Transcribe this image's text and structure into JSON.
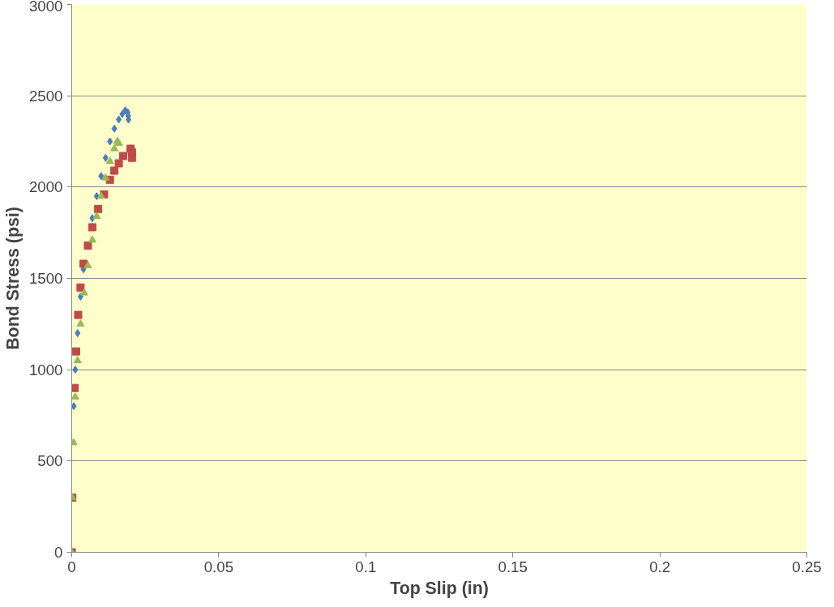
{
  "chart_data": {
    "type": "scatter",
    "xlabel": "Top Slip (in)",
    "ylabel": "Bond Stress (psi)",
    "xlim": [
      0,
      0.25
    ],
    "xticks": [
      0,
      0.05,
      0.1,
      0.15,
      0.2,
      0.25
    ],
    "ylim": [
      0,
      3000
    ],
    "yticks": [
      0,
      500,
      1000,
      1500,
      2000,
      2500,
      3000
    ],
    "grid": "y",
    "series": [
      {
        "color": "#4a7ebb",
        "marker": "diamond",
        "x": [
          0.0007,
          0.0012,
          0.002,
          0.003,
          0.004,
          0.007,
          0.0085,
          0.01,
          0.0115,
          0.013,
          0.0145,
          0.016,
          0.0172,
          0.0182,
          0.019,
          0.0192,
          0.0193
        ],
        "values": [
          800,
          1000,
          1200,
          1400,
          1550,
          1830,
          1950,
          2060,
          2160,
          2250,
          2320,
          2370,
          2400,
          2420,
          2410,
          2390,
          2370
        ]
      },
      {
        "color": "#be4b48",
        "marker": "square",
        "x": [
          0,
          0.0002,
          0.001,
          0.0015,
          0.0022,
          0.003,
          0.004,
          0.0055,
          0.007,
          0.009,
          0.011,
          0.013,
          0.0145,
          0.016,
          0.0175,
          0.02,
          0.0205,
          0.0205
        ],
        "values": [
          0,
          300,
          900,
          1100,
          1300,
          1450,
          1580,
          1680,
          1780,
          1880,
          1960,
          2040,
          2090,
          2130,
          2170,
          2210,
          2190,
          2160
        ]
      },
      {
        "color": "#98b954",
        "marker": "triangle",
        "x": [
          0,
          0.0002,
          0.0006,
          0.0012,
          0.002,
          0.003,
          0.0042,
          0.0055,
          0.007,
          0.0085,
          0.01,
          0.0115,
          0.013,
          0.0145,
          0.0155,
          0.016
        ],
        "values": [
          0,
          300,
          600,
          850,
          1050,
          1250,
          1420,
          1570,
          1710,
          1840,
          1950,
          2050,
          2140,
          2210,
          2250,
          2240
        ]
      }
    ]
  }
}
